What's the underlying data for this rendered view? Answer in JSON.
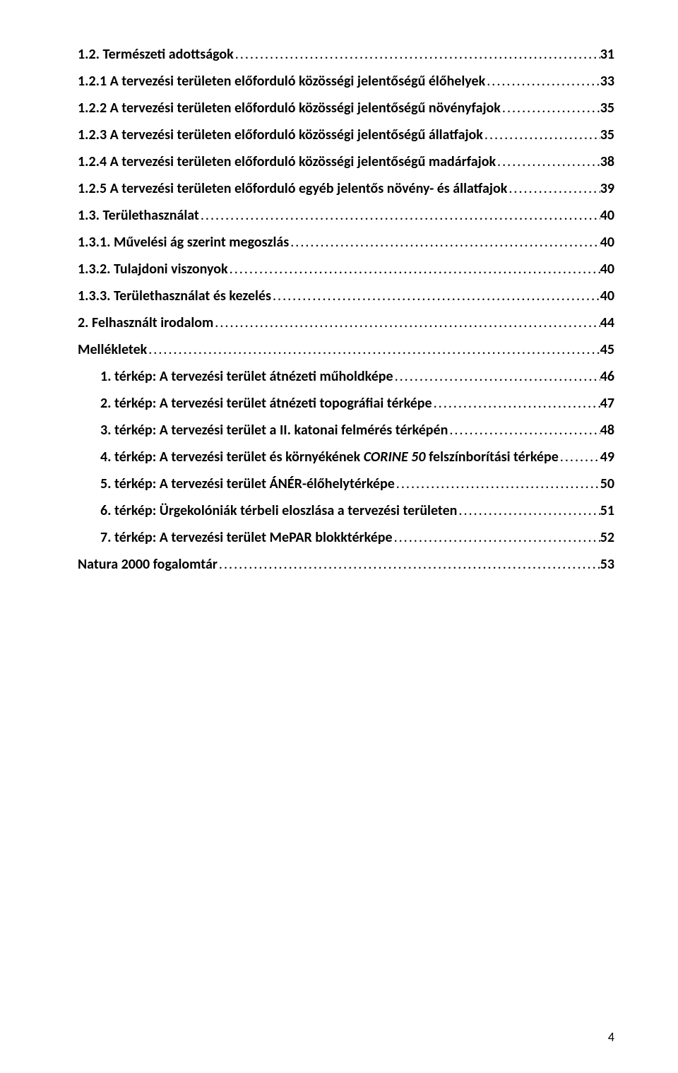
{
  "toc": [
    {
      "indent": 0,
      "text": "1.2. Természeti adottságok",
      "page": "31"
    },
    {
      "indent": 0,
      "text": "1.2.1 A tervezési területen előforduló közösségi jelentőségű élőhelyek",
      "page": "33"
    },
    {
      "indent": 0,
      "text": "1.2.2 A tervezési területen előforduló közösségi jelentőségű növényfajok",
      "page": "35"
    },
    {
      "indent": 0,
      "text": "1.2.3 A tervezési területen előforduló közösségi jelentőségű állatfajok",
      "page": "35"
    },
    {
      "indent": 0,
      "text": "1.2.4 A tervezési területen előforduló közösségi jelentőségű madárfajok",
      "page": "38"
    },
    {
      "indent": 0,
      "text": "1.2.5 A tervezési területen előforduló egyéb jelentős növény- és állatfajok",
      "page": "39"
    },
    {
      "indent": 0,
      "text": "1.3. Területhasználat",
      "page": "40"
    },
    {
      "indent": 0,
      "text": "1.3.1. Művelési ág szerint megoszlás",
      "page": "40"
    },
    {
      "indent": 0,
      "text": "1.3.2. Tulajdoni viszonyok",
      "page": "40"
    },
    {
      "indent": 0,
      "text": "1.3.3. Területhasználat és kezelés",
      "page": "40"
    },
    {
      "indent": 0,
      "text": "2. Felhasznált irodalom",
      "page": "44"
    },
    {
      "indent": 0,
      "text": "Mellékletek",
      "page": "45"
    },
    {
      "indent": 1,
      "text": "1.  térkép: A tervezési terület átnézeti műholdképe",
      "page": "46"
    },
    {
      "indent": 1,
      "text": "2.  térkép: A tervezési terület átnézeti topográfiai térképe",
      "page": "47"
    },
    {
      "indent": 1,
      "text": "3.  térkép: A tervezési terület a II. katonai felmérés térképén",
      "page": "48"
    },
    {
      "indent": 1,
      "text_pre": "4.  térkép: A tervezési terület és környékének ",
      "text_italic": "CORINE 50",
      "text_post": " felszínborítási térképe",
      "page": "49"
    },
    {
      "indent": 1,
      "text": "5.  térkép: A tervezési terület ÁNÉR-élőhelytérképe",
      "page": "50"
    },
    {
      "indent": 1,
      "text": "6.  térkép: Ürgekolóniák térbeli eloszlása a tervezési területen",
      "page": "51"
    },
    {
      "indent": 1,
      "text": "7.  térkép: A tervezési terület MePAR blokktérképe",
      "page": "52"
    },
    {
      "indent": 0,
      "text": "Natura 2000 fogalomtár",
      "page": "53"
    }
  ],
  "page_number": "4",
  "leader_dots": "...................................................................................................................................................................................................................................................."
}
